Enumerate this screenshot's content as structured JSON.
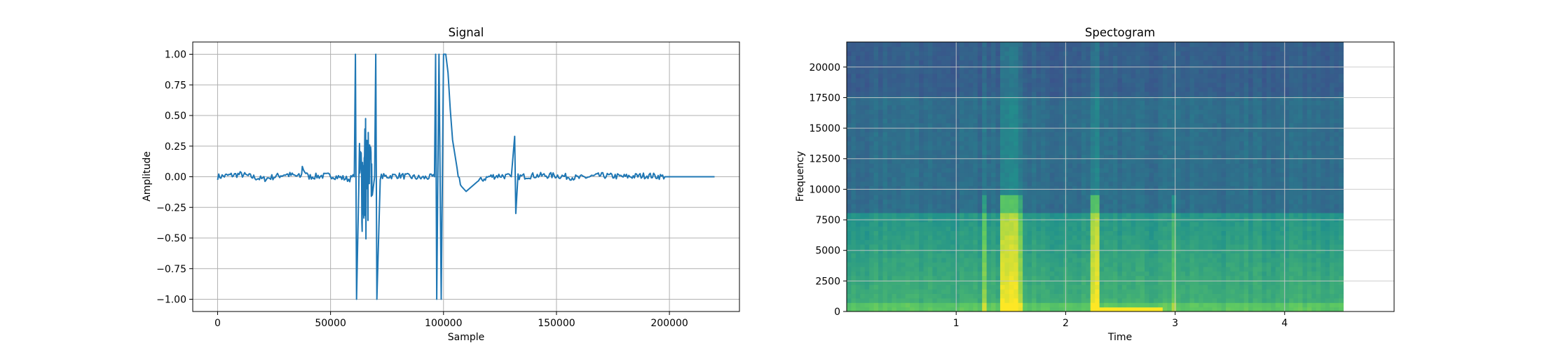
{
  "chart_data": [
    {
      "type": "line",
      "title": "Signal",
      "xlabel": "Sample",
      "ylabel": "Amplitude",
      "xlim": [
        -11000,
        231000
      ],
      "ylim": [
        -1.1,
        1.1
      ],
      "xticks": [
        0,
        50000,
        100000,
        150000,
        200000
      ],
      "xtick_labels": [
        "0",
        "50000",
        "100000",
        "150000",
        "200000"
      ],
      "yticks": [
        -1.0,
        -0.75,
        -0.5,
        -0.25,
        0.0,
        0.25,
        0.5,
        0.75,
        1.0
      ],
      "ytick_labels": [
        "−1.00",
        "−0.75",
        "−0.50",
        "−0.25",
        "0.00",
        "0.25",
        "0.50",
        "0.75",
        "1.00"
      ],
      "grid": true,
      "color": "#1f77b4",
      "series": [
        {
          "x": [
            0,
            10000,
            20000,
            30000,
            37000,
            37500,
            40000,
            50000,
            58000,
            60500,
            61000,
            61500,
            63000,
            64000,
            65000,
            66000,
            67000,
            68000,
            69500,
            70000,
            70500,
            72000,
            80000,
            90000,
            96000,
            96500,
            97000,
            98000,
            99000,
            100000,
            101000,
            102000,
            103000,
            104000,
            106000,
            108000,
            110000,
            115000,
            120000,
            125000,
            130000,
            131500,
            132000,
            133000,
            140000,
            150000,
            160000,
            170000,
            180000,
            190000,
            198000,
            200000,
            210000,
            220000
          ],
          "y": [
            0.0,
            0.02,
            -0.02,
            0.02,
            0.0,
            0.08,
            0.0,
            0.01,
            -0.02,
            0.0,
            1.0,
            -1.0,
            0.0,
            0.5,
            0.63,
            -0.65,
            0.55,
            -0.5,
            0.0,
            1.0,
            -1.0,
            0.0,
            0.01,
            -0.01,
            0.0,
            1.0,
            -1.0,
            1.0,
            -1.0,
            1.0,
            1.0,
            0.85,
            0.55,
            0.3,
            0.05,
            -0.08,
            -0.12,
            -0.04,
            0.0,
            0.01,
            0.0,
            0.33,
            -0.3,
            0.0,
            0.01,
            0.01,
            -0.01,
            0.01,
            0.0,
            0.01,
            0.0,
            0.0,
            0.0,
            0.0
          ]
        }
      ]
    },
    {
      "type": "heatmap",
      "title": "Spectogram",
      "xlabel": "Time",
      "ylabel": "Frequency",
      "xlim": [
        0,
        5.0
      ],
      "ylim": [
        0,
        22050
      ],
      "data_extent_x": [
        0,
        4.535
      ],
      "xticks": [
        1,
        2,
        3,
        4
      ],
      "xtick_labels": [
        "1",
        "2",
        "3",
        "4"
      ],
      "yticks": [
        0,
        2500,
        5000,
        7500,
        10000,
        12500,
        15000,
        17500,
        20000
      ],
      "ytick_labels": [
        "0",
        "2500",
        "5000",
        "7500",
        "10000",
        "12500",
        "15000",
        "17500",
        "20000"
      ],
      "grid": true,
      "colormap": "viridis"
    }
  ]
}
